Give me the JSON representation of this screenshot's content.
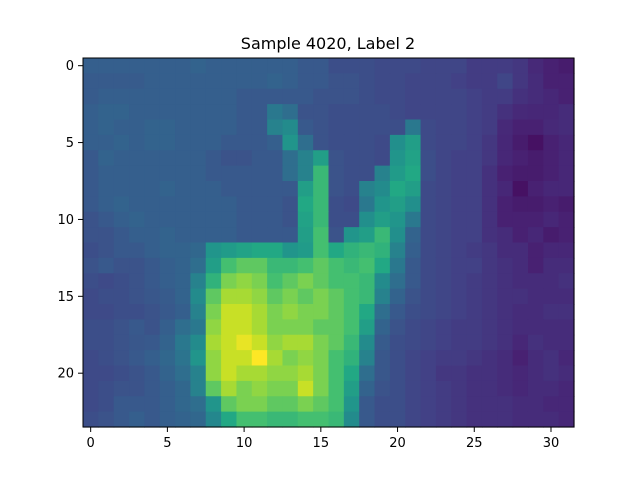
{
  "chart_data": {
    "type": "heatmap",
    "title": "Sample 4020, Label 2",
    "xlabel": "",
    "ylabel": "",
    "colormap": "viridis",
    "n_cols": 32,
    "n_rows": 24,
    "value_range": [
      0,
      1
    ],
    "x_ticks": [
      0,
      5,
      10,
      15,
      20,
      25,
      30
    ],
    "y_ticks": [
      0,
      5,
      10,
      15,
      20
    ],
    "grid": false,
    "values": [
      [
        0.38,
        0.38,
        0.38,
        0.38,
        0.38,
        0.38,
        0.38,
        0.4,
        0.38,
        0.38,
        0.38,
        0.38,
        0.38,
        0.38,
        0.35,
        0.35,
        0.3,
        0.3,
        0.3,
        0.28,
        0.28,
        0.28,
        0.26,
        0.26,
        0.26,
        0.22,
        0.22,
        0.22,
        0.2,
        0.15,
        0.12,
        0.1
      ],
      [
        0.36,
        0.36,
        0.36,
        0.36,
        0.38,
        0.38,
        0.38,
        0.38,
        0.38,
        0.38,
        0.38,
        0.38,
        0.4,
        0.38,
        0.35,
        0.35,
        0.32,
        0.32,
        0.3,
        0.28,
        0.28,
        0.26,
        0.26,
        0.26,
        0.24,
        0.22,
        0.22,
        0.26,
        0.2,
        0.16,
        0.12,
        0.12
      ],
      [
        0.36,
        0.38,
        0.38,
        0.38,
        0.38,
        0.38,
        0.38,
        0.38,
        0.38,
        0.38,
        0.35,
        0.35,
        0.35,
        0.35,
        0.35,
        0.32,
        0.32,
        0.32,
        0.3,
        0.28,
        0.28,
        0.26,
        0.26,
        0.26,
        0.26,
        0.24,
        0.22,
        0.22,
        0.18,
        0.16,
        0.14,
        0.12
      ],
      [
        0.38,
        0.4,
        0.4,
        0.38,
        0.38,
        0.38,
        0.38,
        0.38,
        0.38,
        0.38,
        0.35,
        0.35,
        0.5,
        0.45,
        0.32,
        0.32,
        0.3,
        0.3,
        0.3,
        0.3,
        0.28,
        0.26,
        0.26,
        0.26,
        0.26,
        0.24,
        0.22,
        0.18,
        0.15,
        0.14,
        0.14,
        0.16
      ],
      [
        0.38,
        0.4,
        0.38,
        0.38,
        0.4,
        0.4,
        0.38,
        0.38,
        0.38,
        0.38,
        0.35,
        0.35,
        0.55,
        0.6,
        0.35,
        0.32,
        0.3,
        0.3,
        0.3,
        0.3,
        0.3,
        0.5,
        0.28,
        0.26,
        0.26,
        0.24,
        0.22,
        0.15,
        0.12,
        0.12,
        0.15,
        0.16
      ],
      [
        0.38,
        0.38,
        0.4,
        0.38,
        0.4,
        0.4,
        0.38,
        0.38,
        0.38,
        0.35,
        0.35,
        0.35,
        0.38,
        0.65,
        0.45,
        0.32,
        0.3,
        0.3,
        0.3,
        0.28,
        0.62,
        0.7,
        0.28,
        0.26,
        0.26,
        0.24,
        0.2,
        0.14,
        0.1,
        0.06,
        0.12,
        0.14
      ],
      [
        0.35,
        0.4,
        0.38,
        0.38,
        0.38,
        0.38,
        0.38,
        0.38,
        0.35,
        0.32,
        0.32,
        0.35,
        0.35,
        0.45,
        0.55,
        0.7,
        0.32,
        0.3,
        0.3,
        0.28,
        0.65,
        0.72,
        0.3,
        0.26,
        0.24,
        0.24,
        0.2,
        0.14,
        0.12,
        0.1,
        0.12,
        0.14
      ],
      [
        0.35,
        0.38,
        0.38,
        0.38,
        0.38,
        0.38,
        0.38,
        0.38,
        0.35,
        0.35,
        0.35,
        0.35,
        0.35,
        0.45,
        0.55,
        0.8,
        0.32,
        0.3,
        0.3,
        0.55,
        0.68,
        0.75,
        0.3,
        0.26,
        0.24,
        0.24,
        0.18,
        0.12,
        0.1,
        0.1,
        0.12,
        0.14
      ],
      [
        0.35,
        0.38,
        0.38,
        0.38,
        0.38,
        0.4,
        0.38,
        0.38,
        0.38,
        0.35,
        0.35,
        0.35,
        0.35,
        0.35,
        0.7,
        0.8,
        0.32,
        0.3,
        0.55,
        0.6,
        0.75,
        0.7,
        0.28,
        0.26,
        0.24,
        0.24,
        0.18,
        0.14,
        0.06,
        0.12,
        0.14,
        0.14
      ],
      [
        0.35,
        0.38,
        0.4,
        0.38,
        0.38,
        0.38,
        0.38,
        0.38,
        0.38,
        0.38,
        0.35,
        0.35,
        0.35,
        0.32,
        0.75,
        0.8,
        0.3,
        0.28,
        0.5,
        0.65,
        0.7,
        0.62,
        0.28,
        0.26,
        0.24,
        0.24,
        0.18,
        0.12,
        0.1,
        0.1,
        0.12,
        0.1
      ],
      [
        0.32,
        0.35,
        0.38,
        0.4,
        0.38,
        0.38,
        0.38,
        0.38,
        0.38,
        0.38,
        0.35,
        0.35,
        0.35,
        0.32,
        0.72,
        0.8,
        0.3,
        0.3,
        0.62,
        0.7,
        0.65,
        0.5,
        0.28,
        0.26,
        0.24,
        0.24,
        0.18,
        0.12,
        0.12,
        0.12,
        0.14,
        0.12
      ],
      [
        0.32,
        0.32,
        0.35,
        0.38,
        0.38,
        0.4,
        0.38,
        0.38,
        0.38,
        0.38,
        0.35,
        0.35,
        0.35,
        0.35,
        0.7,
        0.82,
        0.32,
        0.65,
        0.7,
        0.8,
        0.62,
        0.4,
        0.28,
        0.26,
        0.24,
        0.24,
        0.18,
        0.16,
        0.12,
        0.14,
        0.1,
        0.12
      ],
      [
        0.3,
        0.32,
        0.35,
        0.35,
        0.38,
        0.4,
        0.4,
        0.42,
        0.65,
        0.68,
        0.72,
        0.75,
        0.75,
        0.65,
        0.68,
        0.82,
        0.75,
        0.78,
        0.8,
        0.78,
        0.55,
        0.38,
        0.28,
        0.26,
        0.24,
        0.22,
        0.2,
        0.16,
        0.16,
        0.12,
        0.14,
        0.14
      ],
      [
        0.32,
        0.35,
        0.32,
        0.32,
        0.35,
        0.38,
        0.4,
        0.45,
        0.7,
        0.82,
        0.85,
        0.85,
        0.8,
        0.8,
        0.82,
        0.85,
        0.82,
        0.8,
        0.82,
        0.75,
        0.5,
        0.35,
        0.28,
        0.26,
        0.24,
        0.24,
        0.2,
        0.18,
        0.16,
        0.12,
        0.16,
        0.16
      ],
      [
        0.3,
        0.28,
        0.3,
        0.32,
        0.35,
        0.38,
        0.4,
        0.55,
        0.78,
        0.88,
        0.9,
        0.88,
        0.82,
        0.85,
        0.88,
        0.85,
        0.82,
        0.82,
        0.8,
        0.6,
        0.45,
        0.35,
        0.28,
        0.26,
        0.24,
        0.22,
        0.2,
        0.18,
        0.16,
        0.16,
        0.16,
        0.18
      ],
      [
        0.28,
        0.3,
        0.3,
        0.32,
        0.34,
        0.36,
        0.4,
        0.6,
        0.85,
        0.92,
        0.92,
        0.9,
        0.85,
        0.88,
        0.85,
        0.88,
        0.85,
        0.82,
        0.8,
        0.55,
        0.4,
        0.32,
        0.28,
        0.26,
        0.24,
        0.22,
        0.2,
        0.18,
        0.18,
        0.16,
        0.16,
        0.16
      ],
      [
        0.28,
        0.28,
        0.3,
        0.3,
        0.32,
        0.35,
        0.38,
        0.55,
        0.88,
        0.95,
        0.95,
        0.92,
        0.88,
        0.9,
        0.88,
        0.88,
        0.85,
        0.82,
        0.75,
        0.45,
        0.35,
        0.3,
        0.28,
        0.26,
        0.24,
        0.22,
        0.2,
        0.18,
        0.16,
        0.16,
        0.18,
        0.18
      ],
      [
        0.3,
        0.3,
        0.32,
        0.35,
        0.32,
        0.38,
        0.45,
        0.5,
        0.9,
        0.95,
        0.95,
        0.92,
        0.88,
        0.88,
        0.88,
        0.85,
        0.85,
        0.82,
        0.7,
        0.4,
        0.32,
        0.28,
        0.26,
        0.24,
        0.22,
        0.22,
        0.2,
        0.18,
        0.16,
        0.16,
        0.16,
        0.16
      ],
      [
        0.3,
        0.3,
        0.32,
        0.34,
        0.35,
        0.4,
        0.5,
        0.6,
        0.92,
        0.95,
        0.98,
        0.95,
        0.9,
        0.92,
        0.92,
        0.88,
        0.85,
        0.8,
        0.6,
        0.36,
        0.3,
        0.28,
        0.26,
        0.24,
        0.22,
        0.22,
        0.2,
        0.18,
        0.14,
        0.18,
        0.16,
        0.16
      ],
      [
        0.28,
        0.3,
        0.32,
        0.35,
        0.38,
        0.42,
        0.48,
        0.65,
        0.9,
        0.95,
        0.95,
        1.0,
        0.92,
        0.88,
        0.9,
        0.88,
        0.82,
        0.78,
        0.55,
        0.34,
        0.3,
        0.26,
        0.24,
        0.22,
        0.22,
        0.2,
        0.18,
        0.16,
        0.12,
        0.16,
        0.18,
        0.14
      ],
      [
        0.28,
        0.28,
        0.3,
        0.32,
        0.35,
        0.4,
        0.45,
        0.55,
        0.9,
        0.95,
        0.92,
        0.92,
        0.9,
        0.9,
        0.92,
        0.88,
        0.82,
        0.75,
        0.45,
        0.34,
        0.3,
        0.26,
        0.24,
        0.2,
        0.2,
        0.18,
        0.18,
        0.16,
        0.14,
        0.16,
        0.18,
        0.16
      ],
      [
        0.28,
        0.3,
        0.32,
        0.32,
        0.35,
        0.38,
        0.42,
        0.55,
        0.85,
        0.92,
        0.88,
        0.9,
        0.88,
        0.88,
        0.95,
        0.88,
        0.82,
        0.7,
        0.4,
        0.32,
        0.3,
        0.26,
        0.24,
        0.22,
        0.2,
        0.18,
        0.18,
        0.16,
        0.14,
        0.16,
        0.16,
        0.14
      ],
      [
        0.28,
        0.3,
        0.35,
        0.35,
        0.35,
        0.38,
        0.42,
        0.45,
        0.65,
        0.85,
        0.88,
        0.88,
        0.85,
        0.85,
        0.88,
        0.85,
        0.82,
        0.65,
        0.35,
        0.3,
        0.3,
        0.26,
        0.24,
        0.22,
        0.2,
        0.18,
        0.18,
        0.18,
        0.16,
        0.16,
        0.14,
        0.14
      ],
      [
        0.3,
        0.32,
        0.35,
        0.38,
        0.35,
        0.38,
        0.4,
        0.42,
        0.58,
        0.75,
        0.82,
        0.82,
        0.8,
        0.8,
        0.82,
        0.82,
        0.8,
        0.6,
        0.35,
        0.3,
        0.3,
        0.26,
        0.24,
        0.22,
        0.2,
        0.18,
        0.18,
        0.18,
        0.16,
        0.16,
        0.16,
        0.14
      ]
    ]
  }
}
